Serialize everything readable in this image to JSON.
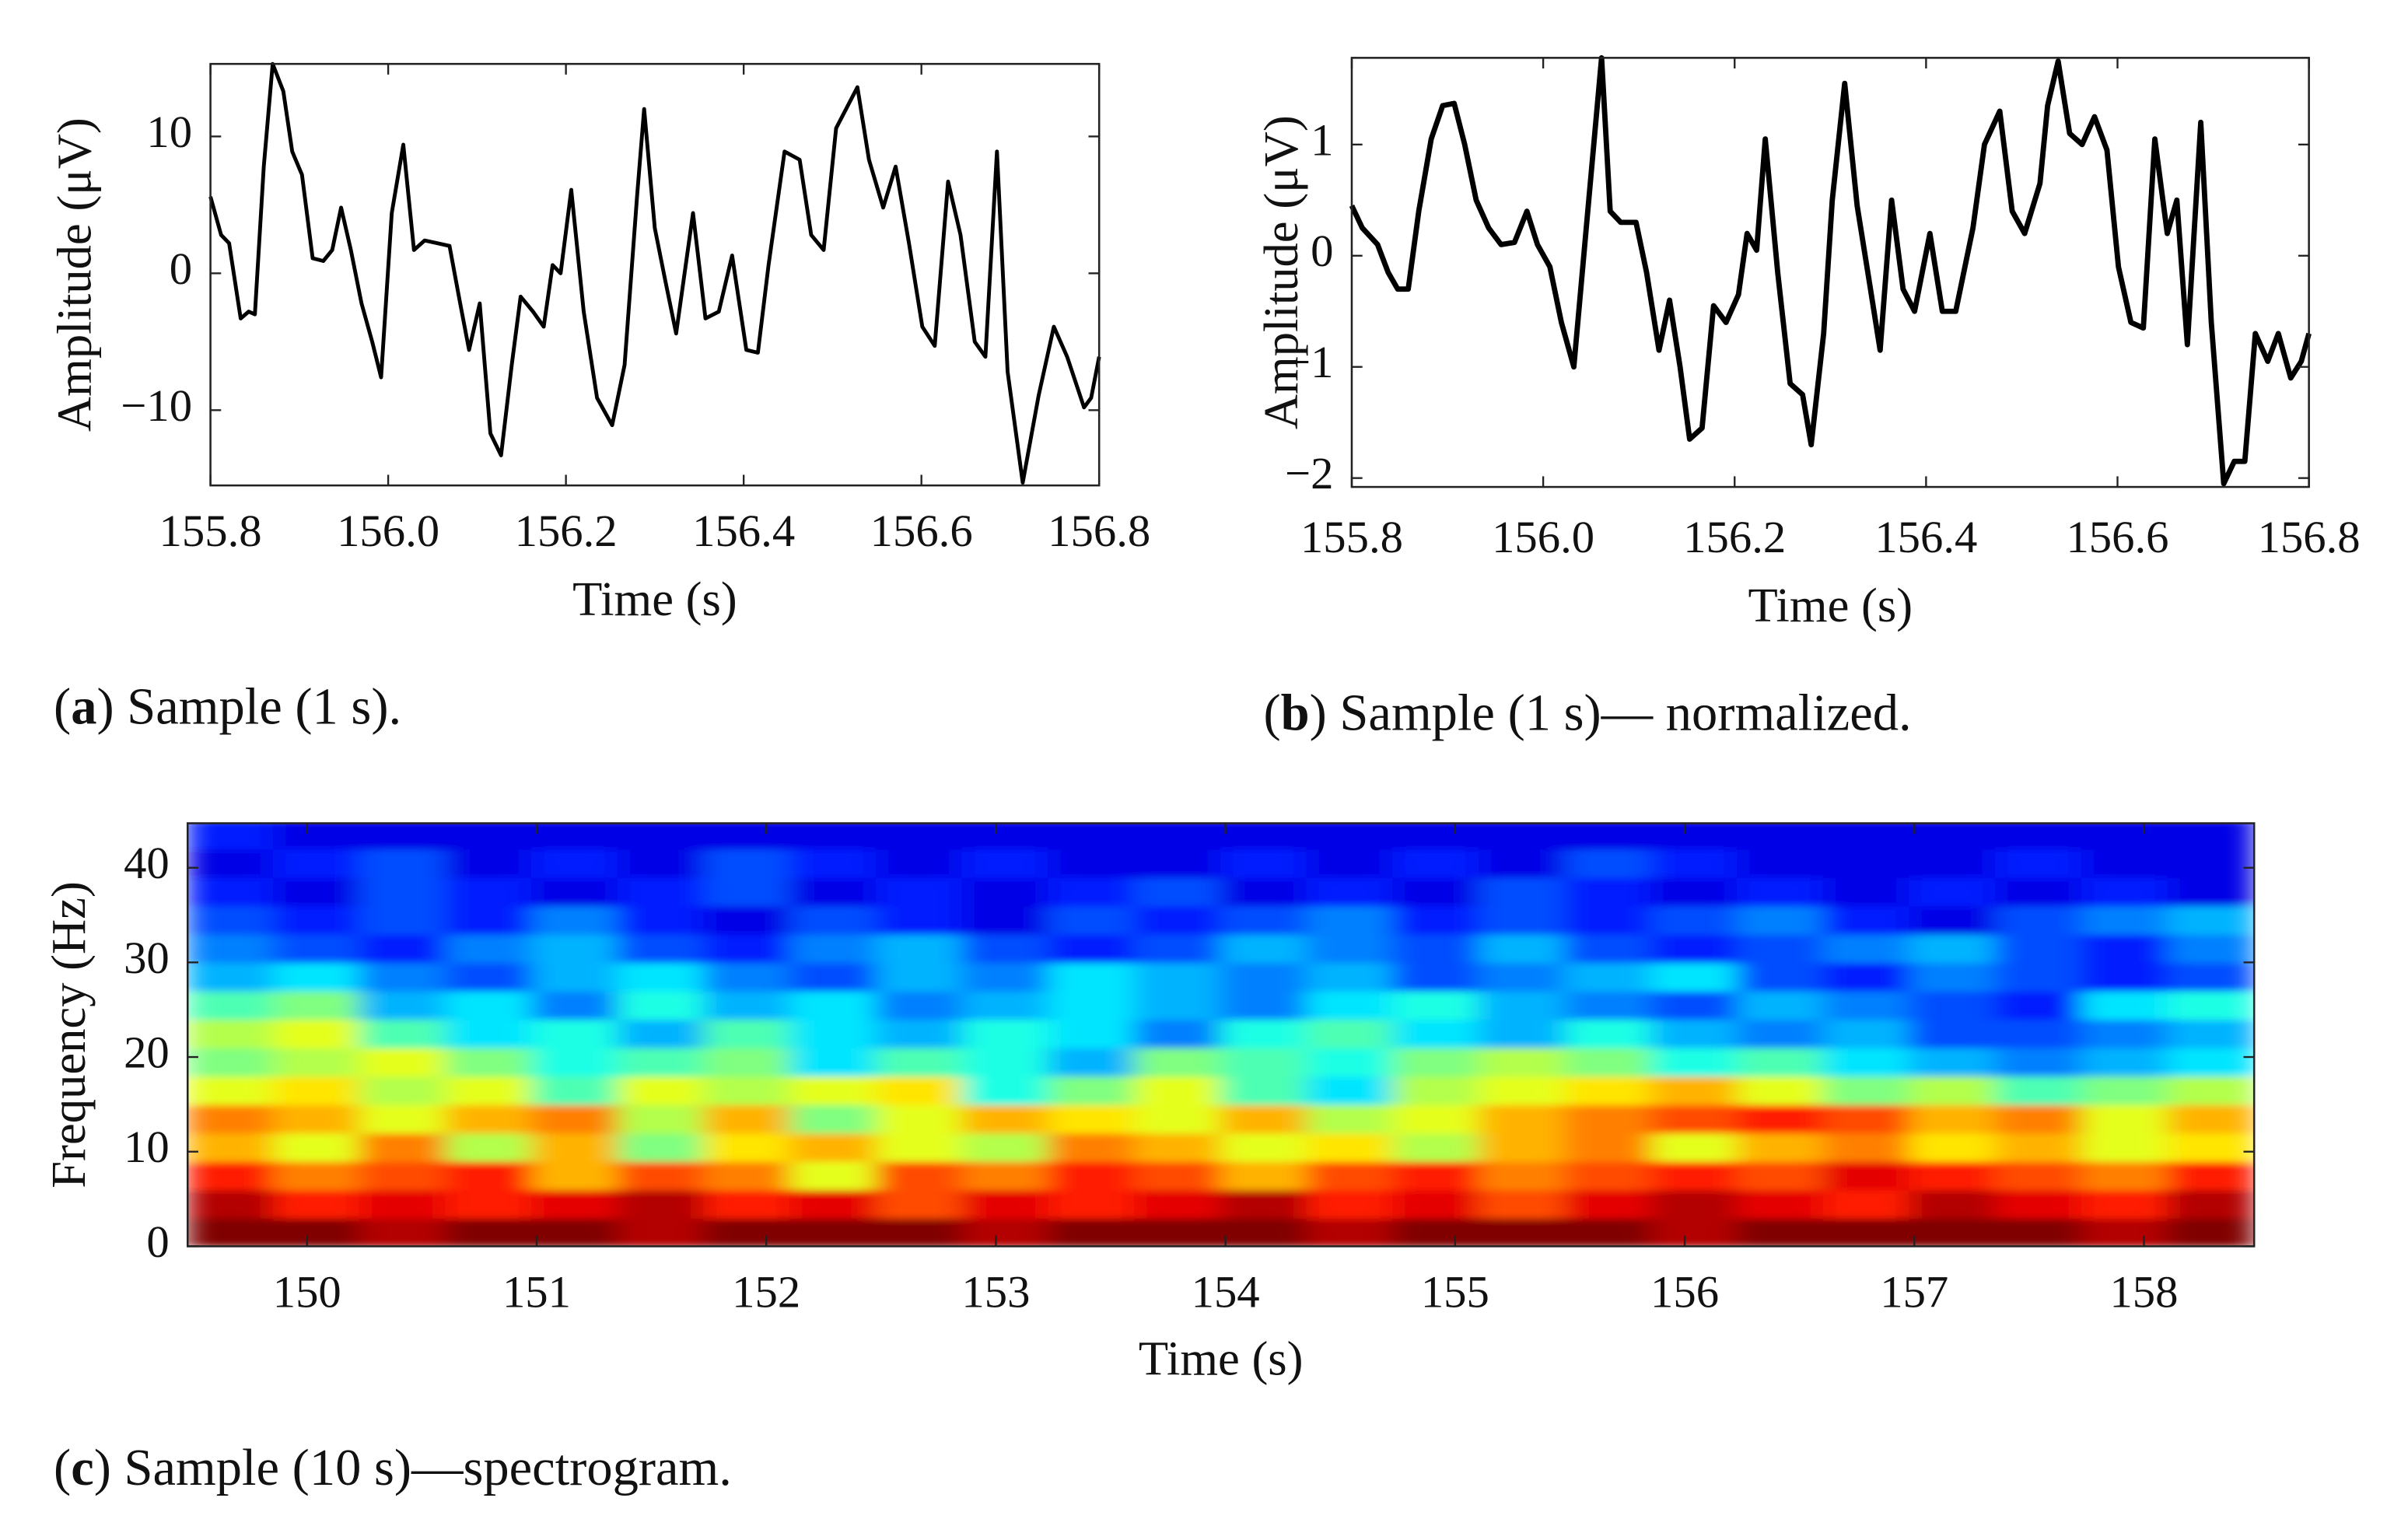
{
  "chart_data": [
    {
      "type": "line",
      "color": "#000000",
      "xlabel": "Time (s)",
      "ylabel": "Amplitude (μV)",
      "caption_parts": [
        "(",
        "a",
        ") Sample (1 s)."
      ],
      "xlim": [
        155.8,
        156.8
      ],
      "ylim": [
        -15.5,
        15.3
      ],
      "xticks": [
        155.8,
        {
          "value": 156.0,
          "label": "156.0"
        },
        156.2,
        156.4,
        156.6,
        156.8
      ],
      "yticks": [
        {
          "value": -10,
          "label": "−10"
        },
        0,
        10
      ],
      "x": [
        155.8,
        155.812,
        155.821,
        155.834,
        155.843,
        155.85,
        155.86,
        155.87,
        155.882,
        155.892,
        155.903,
        155.915,
        155.927,
        155.937,
        155.947,
        155.958,
        155.97,
        155.982,
        155.992,
        156.004,
        156.017,
        156.029,
        156.041,
        156.055,
        156.069,
        156.081,
        156.091,
        156.103,
        156.115,
        156.127,
        156.139,
        156.149,
        156.163,
        156.175,
        156.185,
        156.194,
        156.206,
        156.22,
        156.235,
        156.252,
        156.266,
        156.28,
        156.288,
        156.3,
        156.312,
        156.324,
        156.343,
        156.357,
        156.372,
        156.387,
        156.403,
        156.416,
        156.428,
        156.446,
        156.463,
        156.476,
        156.49,
        156.504,
        156.528,
        156.541,
        156.557,
        156.571,
        156.586,
        156.601,
        156.615,
        156.63,
        156.644,
        156.66,
        156.672,
        156.685,
        156.697,
        156.714,
        156.732,
        156.749,
        156.764,
        156.783,
        156.791,
        156.8
      ],
      "values": [
        5.6,
        2.8,
        2.2,
        -3.3,
        -2.8,
        -3.0,
        7.8,
        15.3,
        13.3,
        8.9,
        7.2,
        1.1,
        0.9,
        1.7,
        4.8,
        1.7,
        -2.2,
        -5.0,
        -7.6,
        4.4,
        9.4,
        1.7,
        2.4,
        2.2,
        2.0,
        -2.2,
        -5.6,
        -2.2,
        -11.7,
        -13.3,
        -6.7,
        -1.7,
        -2.8,
        -3.9,
        0.6,
        0,
        6.1,
        -2.8,
        -9.1,
        -11.1,
        -6.7,
        5.6,
        12.0,
        3.3,
        -0.6,
        -4.4,
        4.4,
        -3.3,
        -2.8,
        1.3,
        -5.6,
        -5.8,
        0.6,
        8.9,
        8.3,
        2.8,
        1.7,
        10.6,
        13.6,
        8.3,
        4.8,
        7.8,
        2.2,
        -3.9,
        -5.3,
        6.7,
        2.8,
        -5.0,
        -6.1,
        8.9,
        -7.2,
        -15.3,
        -8.9,
        -3.9,
        -6.1,
        -9.8,
        -9.1,
        -6.1
      ]
    },
    {
      "type": "line",
      "color": "#000000",
      "xlabel": "Time (s)",
      "ylabel": "Amplitude (μV)",
      "caption_parts": [
        "(",
        "b",
        ") Sample (1 s)— normalized."
      ],
      "xlim": [
        155.8,
        156.8
      ],
      "ylim": [
        -2.08,
        1.78
      ],
      "xticks": [
        155.8,
        {
          "value": 156.0,
          "label": "156.0"
        },
        156.2,
        156.4,
        156.6,
        156.8
      ],
      "yticks": [
        {
          "value": -2,
          "label": "−2"
        },
        {
          "value": -1,
          "label": "−1"
        },
        0,
        1
      ],
      "x": [
        155.8,
        155.811,
        155.827,
        155.838,
        155.848,
        155.859,
        155.87,
        155.883,
        155.895,
        155.907,
        155.918,
        155.93,
        155.943,
        155.956,
        155.97,
        155.983,
        155.994,
        156.007,
        156.019,
        156.032,
        156.045,
        156.061,
        156.07,
        156.081,
        156.097,
        156.108,
        156.121,
        156.132,
        156.143,
        156.153,
        156.166,
        156.178,
        156.191,
        156.204,
        156.213,
        156.223,
        156.232,
        156.245,
        156.258,
        156.271,
        156.28,
        156.293,
        156.302,
        156.315,
        156.328,
        156.341,
        156.352,
        156.364,
        156.376,
        156.388,
        156.404,
        156.417,
        156.431,
        156.449,
        156.461,
        156.477,
        156.49,
        156.503,
        156.519,
        156.527,
        156.538,
        156.55,
        156.563,
        156.576,
        156.589,
        156.601,
        156.614,
        156.627,
        156.639,
        156.652,
        156.662,
        156.673,
        156.687,
        156.698,
        156.711,
        156.722,
        156.733,
        156.744,
        156.757,
        156.768,
        156.781,
        156.792,
        156.8
      ],
      "values": [
        0.45,
        0.25,
        0.1,
        -0.15,
        -0.3,
        -0.3,
        0.4,
        1.05,
        1.35,
        1.37,
        1.0,
        0.5,
        0.25,
        0.1,
        0.12,
        0.4,
        0.1,
        -0.1,
        -0.6,
        -1.0,
        0.25,
        1.78,
        0.4,
        0.3,
        0.3,
        -0.15,
        -0.85,
        -0.4,
        -1.0,
        -1.65,
        -1.55,
        -0.45,
        -0.6,
        -0.35,
        0.2,
        0.05,
        1.05,
        -0.15,
        -1.15,
        -1.25,
        -1.7,
        -0.7,
        0.5,
        1.55,
        0.45,
        -0.25,
        -0.85,
        0.5,
        -0.3,
        -0.5,
        0.2,
        -0.5,
        -0.5,
        0.25,
        1.0,
        1.3,
        0.4,
        0.2,
        0.65,
        1.35,
        1.75,
        1.1,
        1.0,
        1.25,
        0.95,
        -0.1,
        -0.6,
        -0.65,
        1.05,
        0.2,
        0.5,
        -0.8,
        1.2,
        -0.6,
        -2.05,
        -1.85,
        -1.85,
        -0.7,
        -0.95,
        -0.7,
        -1.1,
        -0.95,
        -0.7
      ]
    },
    {
      "type": "heatmap",
      "colormap": "jet",
      "clim": [
        0,
        1
      ],
      "xlabel": "Time (s)",
      "ylabel": "Frequency (Hz)",
      "caption_parts": [
        "(",
        "c",
        ") Sample (10 s)—spectrogram."
      ],
      "xlim": [
        149.48,
        158.48
      ],
      "ylim": [
        0,
        44.7
      ],
      "xticks": [
        150,
        151,
        152,
        153,
        154,
        155,
        156,
        157,
        158
      ],
      "yticks": [
        0,
        10,
        20,
        30,
        40
      ],
      "xbins": [
        149.48,
        149.855,
        150.23,
        150.605,
        150.98,
        151.355,
        151.73,
        152.105,
        152.48,
        152.855,
        153.23,
        153.605,
        153.98,
        154.355,
        154.73,
        155.105,
        155.48,
        155.855,
        156.23,
        156.605,
        156.98,
        157.355,
        157.73,
        158.105,
        158.48
      ],
      "ybins": [
        0,
        3,
        6,
        9,
        12,
        15,
        18,
        21,
        24,
        27,
        30,
        33,
        36,
        39,
        42,
        45
      ],
      "values": [
        [
          1,
          1,
          0.95,
          1,
          1,
          0.95,
          1,
          1,
          1,
          0.95,
          1,
          1,
          1,
          0.95,
          1,
          1,
          1,
          0.95,
          1,
          1,
          1,
          1,
          0.95,
          1
        ],
        [
          0.95,
          0.85,
          0.9,
          0.85,
          0.9,
          0.95,
          0.85,
          0.9,
          0.8,
          0.9,
          0.85,
          0.9,
          0.95,
          0.85,
          0.9,
          0.8,
          0.9,
          0.95,
          0.9,
          0.85,
          0.95,
          0.9,
          0.85,
          0.95
        ],
        [
          0.85,
          0.75,
          0.8,
          0.85,
          0.7,
          0.8,
          0.75,
          0.6,
          0.8,
          0.75,
          0.85,
          0.8,
          0.7,
          0.8,
          0.85,
          0.75,
          0.8,
          0.85,
          0.8,
          0.9,
          0.85,
          0.8,
          0.75,
          0.85
        ],
        [
          0.7,
          0.6,
          0.75,
          0.55,
          0.7,
          0.5,
          0.65,
          0.7,
          0.6,
          0.55,
          0.75,
          0.7,
          0.6,
          0.65,
          0.55,
          0.7,
          0.75,
          0.6,
          0.7,
          0.75,
          0.65,
          0.7,
          0.6,
          0.65
        ],
        [
          0.75,
          0.7,
          0.6,
          0.7,
          0.75,
          0.55,
          0.7,
          0.5,
          0.6,
          0.7,
          0.65,
          0.6,
          0.7,
          0.55,
          0.6,
          0.7,
          0.75,
          0.8,
          0.85,
          0.8,
          0.7,
          0.75,
          0.6,
          0.7
        ],
        [
          0.6,
          0.65,
          0.55,
          0.6,
          0.45,
          0.6,
          0.55,
          0.6,
          0.65,
          0.4,
          0.5,
          0.6,
          0.45,
          0.35,
          0.55,
          0.6,
          0.65,
          0.7,
          0.6,
          0.5,
          0.55,
          0.45,
          0.5,
          0.55
        ],
        [
          0.5,
          0.55,
          0.6,
          0.5,
          0.4,
          0.45,
          0.5,
          0.35,
          0.45,
          0.4,
          0.3,
          0.5,
          0.45,
          0.4,
          0.5,
          0.55,
          0.5,
          0.4,
          0.45,
          0.35,
          0.3,
          0.25,
          0.3,
          0.35
        ],
        [
          0.55,
          0.6,
          0.45,
          0.35,
          0.4,
          0.3,
          0.45,
          0.35,
          0.3,
          0.4,
          0.35,
          0.25,
          0.4,
          0.45,
          0.35,
          0.3,
          0.4,
          0.3,
          0.25,
          0.3,
          0.2,
          0.2,
          0.25,
          0.3
        ],
        [
          0.45,
          0.5,
          0.3,
          0.35,
          0.25,
          0.4,
          0.3,
          0.35,
          0.25,
          0.3,
          0.35,
          0.3,
          0.25,
          0.35,
          0.4,
          0.3,
          0.25,
          0.2,
          0.3,
          0.25,
          0.2,
          0.15,
          0.35,
          0.4
        ],
        [
          0.3,
          0.35,
          0.25,
          0.2,
          0.3,
          0.35,
          0.25,
          0.2,
          0.3,
          0.25,
          0.35,
          0.3,
          0.25,
          0.3,
          0.2,
          0.25,
          0.3,
          0.35,
          0.2,
          0.15,
          0.25,
          0.2,
          0.15,
          0.2
        ],
        [
          0.25,
          0.2,
          0.15,
          0.25,
          0.3,
          0.2,
          0.15,
          0.25,
          0.3,
          0.2,
          0.15,
          0.2,
          0.3,
          0.25,
          0.2,
          0.3,
          0.2,
          0.15,
          0.2,
          0.25,
          0.3,
          0.2,
          0.15,
          0.25
        ],
        [
          0.2,
          0.15,
          0.2,
          0.15,
          0.25,
          0.15,
          0.1,
          0.2,
          0.15,
          0.1,
          0.2,
          0.15,
          0.2,
          0.25,
          0.15,
          0.2,
          0.15,
          0.2,
          0.25,
          0.15,
          0.1,
          0.2,
          0.25,
          0.3
        ],
        [
          0.15,
          0.1,
          0.2,
          0.15,
          0.1,
          0.15,
          0.2,
          0.1,
          0.15,
          0.1,
          0.15,
          0.2,
          0.1,
          0.15,
          0.1,
          0.2,
          0.15,
          0.1,
          0.15,
          0.1,
          0.15,
          0.1,
          0.15,
          0.1
        ],
        [
          0.1,
          0.15,
          0.2,
          0.1,
          0.15,
          0.1,
          0.2,
          0.15,
          0.1,
          0.15,
          0.1,
          0.1,
          0.15,
          0.1,
          0.15,
          0.1,
          0.2,
          0.15,
          0.1,
          0.1,
          0.1,
          0.15,
          0.1,
          0.1
        ],
        [
          0.15,
          0.1,
          0.1,
          0.1,
          0.1,
          0.1,
          0.1,
          0.1,
          0.1,
          0.1,
          0.1,
          0.1,
          0.1,
          0.1,
          0.1,
          0.1,
          0.1,
          0.1,
          0.1,
          0.1,
          0.1,
          0.1,
          0.1,
          0.1
        ]
      ]
    }
  ]
}
